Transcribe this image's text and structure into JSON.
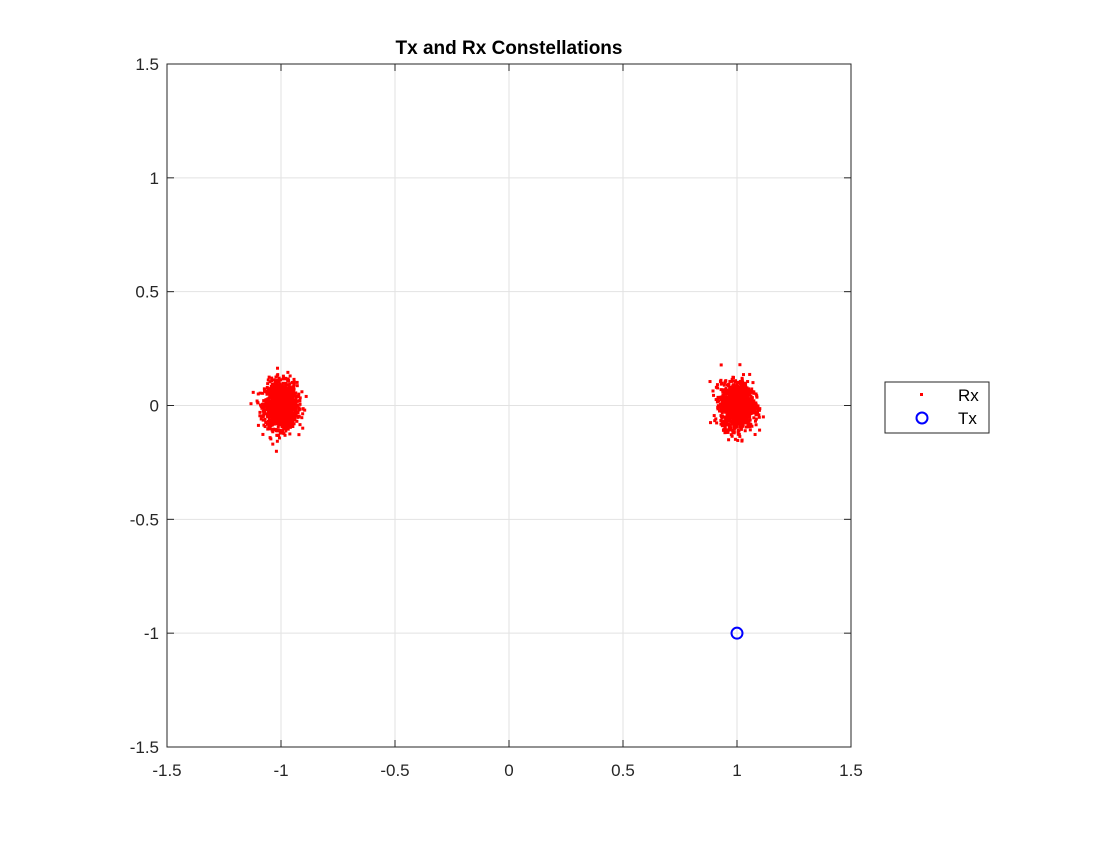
{
  "chart_data": {
    "type": "scatter",
    "title": "Tx and Rx Constellations",
    "xlabel": "",
    "ylabel": "",
    "xlim": [
      -1.5,
      1.5
    ],
    "ylim": [
      -1.5,
      1.5
    ],
    "xticks": [
      -1.5,
      -1,
      -0.5,
      0,
      0.5,
      1,
      1.5
    ],
    "yticks": [
      -1.5,
      -1,
      -0.5,
      0,
      0.5,
      1,
      1.5
    ],
    "xtick_labels": [
      "-1.5",
      "-1",
      "-0.5",
      "0",
      "0.5",
      "1",
      "1.5"
    ],
    "ytick_labels": [
      "-1.5",
      "-1",
      "-0.5",
      "0",
      "0.5",
      "1",
      "1.5"
    ],
    "grid": true,
    "legend_position": "outside-right",
    "series": [
      {
        "name": "Rx",
        "marker": "point",
        "color": "#ff0000",
        "distribution": "gaussian-clusters",
        "clusters": [
          {
            "x": -1,
            "y": 0,
            "sigma_x": 0.035,
            "sigma_y": 0.05,
            "count": 1400
          },
          {
            "x": 1,
            "y": 0,
            "sigma_x": 0.035,
            "sigma_y": 0.05,
            "count": 1400
          }
        ]
      },
      {
        "name": "Tx",
        "marker": "circle",
        "color": "#0000ff",
        "points": [
          {
            "x": 1,
            "y": -1
          }
        ]
      }
    ]
  }
}
